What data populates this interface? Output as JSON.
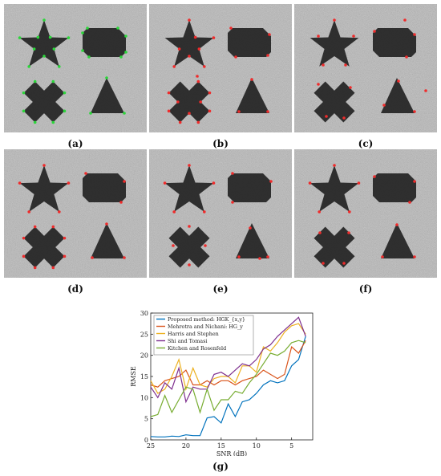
{
  "panels": [
    {
      "label": "(a)",
      "marker_color": "#2bd63a"
    },
    {
      "label": "(b)",
      "marker_color": "#ef2b2b"
    },
    {
      "label": "(c)",
      "marker_color": "#ef2b2b"
    },
    {
      "label": "(d)",
      "marker_color": "#ef2b2b"
    },
    {
      "label": "(e)",
      "marker_color": "#ef2b2b"
    },
    {
      "label": "(f)",
      "marker_color": "#ef2b2b"
    }
  ],
  "chart_label": "(g)",
  "chart_data": {
    "type": "line",
    "xlabel": "SNR (dB)",
    "ylabel": "RMSE",
    "xlim": [
      25,
      2
    ],
    "ylim": [
      0,
      30
    ],
    "x_reversed": true,
    "xticks": [
      25,
      20,
      15,
      10,
      5
    ],
    "yticks": [
      0,
      5,
      10,
      15,
      20,
      25,
      30
    ],
    "legend_position": "top-left",
    "x": [
      25,
      24,
      23,
      22,
      21,
      20,
      19,
      18,
      17,
      16,
      15,
      14,
      13,
      12,
      11,
      10,
      9,
      8,
      7,
      6,
      5,
      4,
      3
    ],
    "series": [
      {
        "name": "Proposed method: HGK_{x,y}",
        "color": "#0072bd",
        "values": [
          0.8,
          0.7,
          0.7,
          0.9,
          0.8,
          1.2,
          1.0,
          1.0,
          5.2,
          5.5,
          4.0,
          8.5,
          5.5,
          9.0,
          9.5,
          11.0,
          13.0,
          14.0,
          13.5,
          14.0,
          17.5,
          19.0,
          24.5
        ]
      },
      {
        "name": "Mehrotra and Nichani: HG_y",
        "color": "#d95319",
        "values": [
          13.0,
          12.5,
          14.0,
          14.5,
          15.0,
          16.5,
          13.0,
          13.0,
          14.0,
          13.0,
          14.0,
          14.0,
          13.0,
          14.0,
          14.5,
          15.0,
          16.5,
          15.5,
          14.5,
          15.5,
          22.0,
          20.5,
          23.5
        ]
      },
      {
        "name": "Harris and Stephen",
        "color": "#edb120",
        "values": [
          14.0,
          11.0,
          12.0,
          15.0,
          19.0,
          12.0,
          17.0,
          13.0,
          12.5,
          14.5,
          15.0,
          15.0,
          13.5,
          17.5,
          17.5,
          16.0,
          22.0,
          21.0,
          23.0,
          25.5,
          27.0,
          27.5,
          25.0
        ]
      },
      {
        "name": "Shi and Tomasi",
        "color": "#7e2f8e",
        "values": [
          12.5,
          10.0,
          13.5,
          12.0,
          17.0,
          9.0,
          12.5,
          12.0,
          12.0,
          15.5,
          16.0,
          15.0,
          16.5,
          18.0,
          17.5,
          19.0,
          21.5,
          22.5,
          24.5,
          26.0,
          27.5,
          29.0,
          24.5
        ]
      },
      {
        "name": "Kitchen and Rosenfeld",
        "color": "#77ac30",
        "values": [
          5.5,
          6.0,
          10.5,
          6.5,
          9.5,
          12.5,
          12.0,
          6.5,
          12.0,
          7.0,
          9.5,
          9.5,
          11.5,
          11.0,
          13.5,
          15.5,
          18.0,
          20.5,
          20.0,
          21.0,
          23.0,
          23.5,
          23.0
        ]
      }
    ]
  }
}
